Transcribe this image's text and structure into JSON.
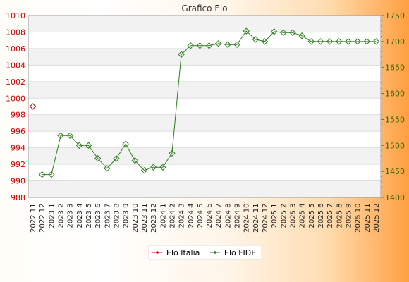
{
  "chart_data": {
    "type": "line",
    "title": "Grafico Elo",
    "categories": [
      "2022 11",
      "2022 12",
      "2023 1",
      "2023 2",
      "2023 3",
      "2023 4",
      "2023 5",
      "2023 6",
      "2023 7",
      "2023 8",
      "2023 9",
      "2023 10",
      "2023 11",
      "2023 12",
      "2024 1",
      "2024 2",
      "2024 3",
      "2024 4",
      "2024 5",
      "2024 6",
      "2024 7",
      "2024 8",
      "2024 9",
      "2024 10",
      "2024 11",
      "2024 12",
      "2025 1",
      "2025 2",
      "2025 3",
      "2025 4",
      "2025 5",
      "2025 6",
      "2025 7",
      "2025 8",
      "2025 9",
      "2025 10",
      "2025 11",
      "2025 12"
    ],
    "y_left": {
      "range": [
        988,
        1010
      ],
      "ticks": [
        988,
        990,
        992,
        994,
        996,
        998,
        1000,
        1002,
        1004,
        1006,
        1008,
        1010
      ],
      "color": "#cc0000"
    },
    "y_right": {
      "range": [
        1400,
        1750
      ],
      "ticks": [
        1400,
        1450,
        1500,
        1550,
        1600,
        1650,
        1700,
        1750
      ],
      "color": "#336600"
    },
    "grid": true,
    "legend": "bottom",
    "series": [
      {
        "name": "Elo Italia",
        "axis": "left",
        "color": "#cc0000",
        "marker": "diamond",
        "values": [
          999,
          null,
          null,
          null,
          null,
          null,
          null,
          null,
          null,
          null,
          null,
          null,
          null,
          null,
          null,
          null,
          null,
          null,
          null,
          null,
          null,
          null,
          null,
          null,
          null,
          null,
          null,
          null,
          null,
          null,
          null,
          null,
          null,
          null,
          null,
          null,
          null,
          null
        ]
      },
      {
        "name": "Elo FIDE",
        "axis": "right",
        "color": "#2e7d1e",
        "marker": "diamond",
        "values": [
          null,
          1444,
          1444,
          1519,
          1519,
          1500,
          1500,
          1475,
          1456,
          1475,
          1503,
          1471,
          1452,
          1458,
          1458,
          1485,
          1675,
          1692,
          1692,
          1692,
          1696,
          1694,
          1694,
          1720,
          1704,
          1700,
          1719,
          1717,
          1717,
          1711,
          1700,
          1700,
          1700,
          1700,
          1700,
          1700,
          1700,
          1700
        ]
      }
    ]
  }
}
